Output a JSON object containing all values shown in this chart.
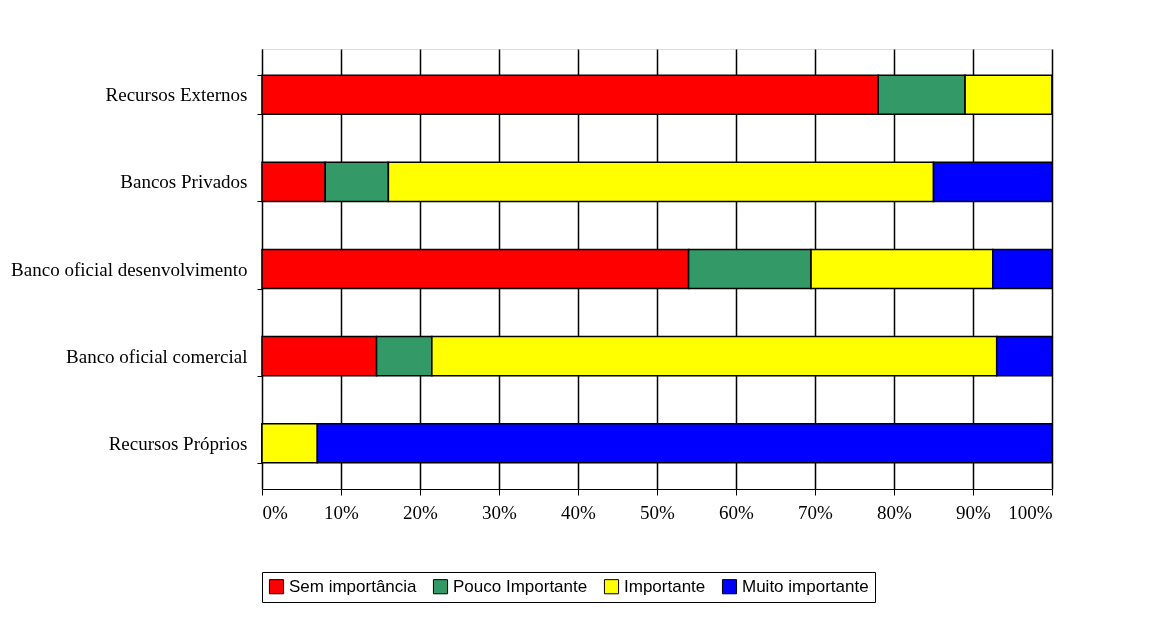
{
  "chart_data": {
    "type": "bar",
    "orientation": "horizontal",
    "stacked": true,
    "categories": [
      "Recursos Externos",
      "Bancos Privados",
      "Banco oficial desenvolvimento",
      "Banco oficial comercial",
      "Recursos Próprios"
    ],
    "series": [
      {
        "name": "Sem importância",
        "color": "#ff0000",
        "values": [
          78,
          8,
          54,
          14.5,
          0
        ]
      },
      {
        "name": "Pouco Importante",
        "color": "#339966",
        "values": [
          11,
          8,
          15.5,
          7,
          0
        ]
      },
      {
        "name": "Importante",
        "color": "#ffff00",
        "values": [
          11,
          69,
          23,
          71.5,
          7
        ]
      },
      {
        "name": "Muito importante",
        "color": "#0000ff",
        "values": [
          0,
          15,
          7.5,
          7,
          93
        ]
      }
    ],
    "xlim": [
      0,
      100
    ],
    "xticks": [
      {
        "value": 0,
        "label": "0%"
      },
      {
        "value": 10,
        "label": "10%"
      },
      {
        "value": 20,
        "label": "20%"
      },
      {
        "value": 30,
        "label": "30%"
      },
      {
        "value": 40,
        "label": "40%"
      },
      {
        "value": 50,
        "label": "50%"
      },
      {
        "value": 60,
        "label": "60%"
      },
      {
        "value": 70,
        "label": "70%"
      },
      {
        "value": 80,
        "label": "80%"
      },
      {
        "value": 90,
        "label": "90%"
      },
      {
        "value": 100,
        "label": "100%"
      }
    ],
    "grid": "x",
    "legend": "bottom"
  }
}
